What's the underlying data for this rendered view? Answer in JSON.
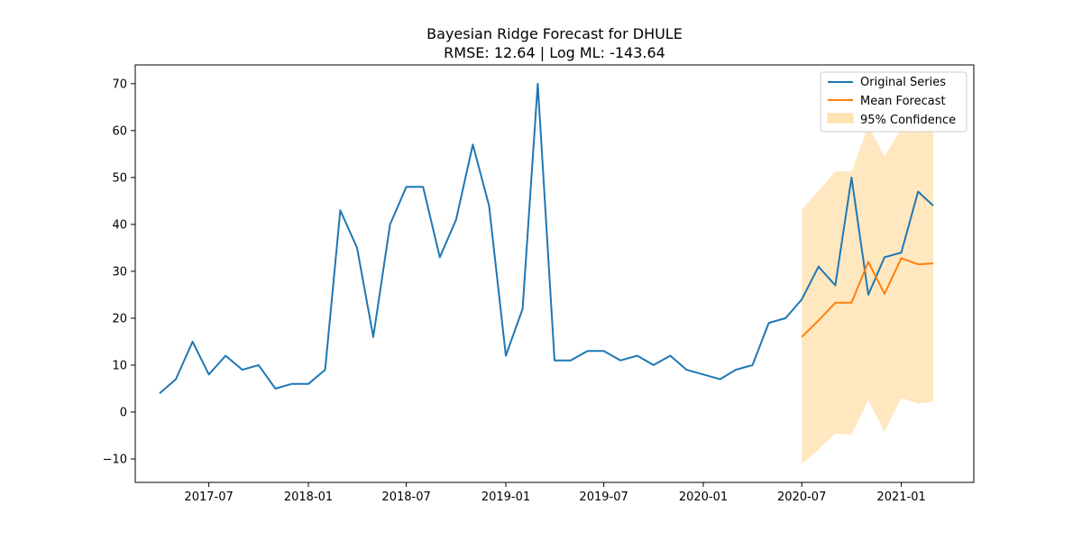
{
  "chart_data": {
    "type": "line",
    "title": "Bayesian Ridge Forecast for DHULE",
    "subtitle": "RMSE: 12.64 | Log ML: -143.64",
    "xlabel": "",
    "ylabel": "",
    "x_range": [
      "2017-02-15",
      "2021-05-15"
    ],
    "ylim": [
      -15,
      74
    ],
    "x_ticks": [
      "2017-07",
      "2018-01",
      "2018-07",
      "2019-01",
      "2019-07",
      "2020-01",
      "2020-07",
      "2021-01"
    ],
    "y_ticks": [
      "−10",
      "0",
      "10",
      "20",
      "30",
      "40",
      "50",
      "60",
      "70"
    ],
    "grid": false,
    "legend_position": "top-right",
    "colors": {
      "original": "#1f77b4",
      "forecast": "#ff7f0e",
      "band": "#ffe4b5"
    },
    "series": [
      {
        "name": "Original Series",
        "x": [
          "2017-04",
          "2017-05",
          "2017-06",
          "2017-07",
          "2017-08",
          "2017-09",
          "2017-10",
          "2017-11",
          "2017-12",
          "2018-01",
          "2018-02",
          "2018-03",
          "2018-04",
          "2018-05",
          "2018-06",
          "2018-07",
          "2018-08",
          "2018-09",
          "2018-10",
          "2018-11",
          "2018-12",
          "2019-01",
          "2019-02",
          "2019-03",
          "2019-04",
          "2019-05",
          "2019-06",
          "2019-07",
          "2019-08",
          "2019-09",
          "2019-10",
          "2019-11",
          "2019-12",
          "2020-01",
          "2020-02",
          "2020-03",
          "2020-04",
          "2020-05",
          "2020-06",
          "2020-07",
          "2020-08",
          "2020-09",
          "2020-10",
          "2020-11",
          "2020-12",
          "2021-01",
          "2021-02",
          "2021-03"
        ],
        "values": [
          4,
          7,
          15,
          8,
          12,
          9,
          10,
          5,
          6,
          6,
          9,
          43,
          35,
          16,
          40,
          48,
          48,
          33,
          41,
          57,
          44,
          12,
          22,
          70,
          11,
          11,
          13,
          13,
          11,
          12,
          10,
          12,
          9,
          8,
          7,
          9,
          10,
          19,
          20,
          24,
          31,
          27,
          50,
          25,
          33,
          34,
          47,
          44
        ]
      },
      {
        "name": "Mean Forecast",
        "x": [
          "2020-07",
          "2020-08",
          "2020-09",
          "2020-10",
          "2020-11",
          "2020-12",
          "2021-01",
          "2021-02",
          "2021-03"
        ],
        "values": [
          16,
          19.5,
          23.3,
          23.3,
          32,
          25.2,
          32.8,
          31.5,
          31.7
        ]
      },
      {
        "name": "95% Confidence",
        "x": [
          "2020-07",
          "2020-08",
          "2020-09",
          "2020-10",
          "2020-11",
          "2020-12",
          "2021-01",
          "2021-02",
          "2021-03"
        ],
        "lower": [
          -11,
          -8,
          -4.6,
          -4.8,
          2.5,
          -4.2,
          3,
          1.8,
          2.2
        ],
        "upper": [
          43.2,
          47.2,
          51.3,
          51.3,
          61,
          54.5,
          60.5,
          60,
          60.5
        ]
      }
    ]
  }
}
